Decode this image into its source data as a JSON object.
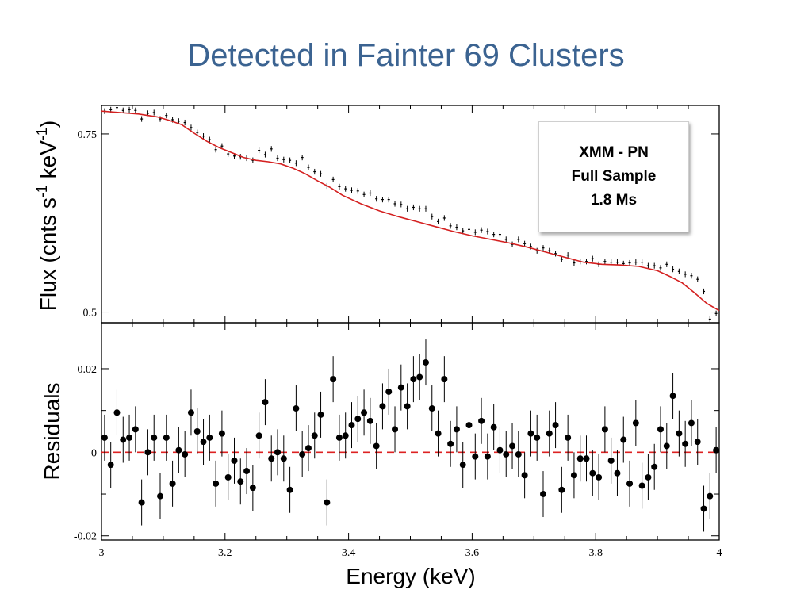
{
  "slide": {
    "title": "Detected in Fainter 69 Clusters"
  },
  "annotation_box": {
    "line1": "XMM - PN",
    "line2": "Full Sample",
    "line3": "1.8 Ms"
  },
  "chart_data": [
    {
      "type": "scatter",
      "panel": "top",
      "ylabel": "Flux (cnts s",
      "ylabel_sup1": "-1",
      "ylabel_mid": " keV",
      "ylabel_sup2": "-1",
      "ylabel_end": ")",
      "xlim": [
        3,
        4
      ],
      "ylim": [
        0.485,
        0.79
      ],
      "ytick_values": [
        0.5,
        0.75
      ],
      "ytick_labels": [
        "0.5",
        "0.75"
      ],
      "series": [
        {
          "kind": "data-points",
          "x": [
            3.005,
            3.015,
            3.025,
            3.035,
            3.045,
            3.055,
            3.065,
            3.075,
            3.085,
            3.095,
            3.105,
            3.115,
            3.125,
            3.135,
            3.145,
            3.155,
            3.165,
            3.175,
            3.185,
            3.195,
            3.205,
            3.215,
            3.225,
            3.235,
            3.245,
            3.255,
            3.265,
            3.275,
            3.285,
            3.295,
            3.305,
            3.315,
            3.325,
            3.335,
            3.345,
            3.355,
            3.365,
            3.375,
            3.385,
            3.395,
            3.405,
            3.415,
            3.425,
            3.435,
            3.445,
            3.455,
            3.465,
            3.475,
            3.485,
            3.495,
            3.505,
            3.515,
            3.525,
            3.535,
            3.545,
            3.555,
            3.565,
            3.575,
            3.585,
            3.595,
            3.605,
            3.615,
            3.625,
            3.635,
            3.645,
            3.655,
            3.665,
            3.675,
            3.685,
            3.695,
            3.705,
            3.715,
            3.725,
            3.735,
            3.745,
            3.755,
            3.765,
            3.775,
            3.785,
            3.795,
            3.805,
            3.815,
            3.825,
            3.835,
            3.845,
            3.855,
            3.865,
            3.875,
            3.885,
            3.895,
            3.905,
            3.915,
            3.925,
            3.935,
            3.945,
            3.955,
            3.965,
            3.975,
            3.985,
            3.995
          ],
          "y": [
            0.782,
            0.784,
            0.787,
            0.783,
            0.784,
            0.783,
            0.771,
            0.779,
            0.78,
            0.771,
            0.776,
            0.77,
            0.768,
            0.766,
            0.759,
            0.752,
            0.747,
            0.742,
            0.728,
            0.733,
            0.722,
            0.719,
            0.718,
            0.716,
            0.713,
            0.727,
            0.721,
            0.729,
            0.716,
            0.714,
            0.713,
            0.709,
            0.717,
            0.703,
            0.697,
            0.694,
            0.677,
            0.686,
            0.676,
            0.673,
            0.671,
            0.67,
            0.665,
            0.667,
            0.659,
            0.658,
            0.658,
            0.652,
            0.651,
            0.645,
            0.647,
            0.645,
            0.645,
            0.634,
            0.627,
            0.632,
            0.621,
            0.619,
            0.614,
            0.616,
            0.612,
            0.615,
            0.613,
            0.609,
            0.609,
            0.602,
            0.595,
            0.602,
            0.596,
            0.592,
            0.586,
            0.59,
            0.586,
            0.582,
            0.574,
            0.58,
            0.569,
            0.571,
            0.571,
            0.575,
            0.567,
            0.571,
            0.57,
            0.57,
            0.568,
            0.569,
            0.57,
            0.57,
            0.565,
            0.565,
            0.562,
            0.567,
            0.56,
            0.557,
            0.553,
            0.551,
            0.546,
            0.529,
            0.49,
            0.498
          ],
          "yerr": 0.004
        },
        {
          "kind": "model-curve",
          "x": [
            3.0,
            3.03,
            3.06,
            3.09,
            3.11,
            3.13,
            3.15,
            3.17,
            3.19,
            3.21,
            3.23,
            3.25,
            3.27,
            3.29,
            3.31,
            3.33,
            3.35,
            3.37,
            3.39,
            3.42,
            3.45,
            3.48,
            3.51,
            3.54,
            3.57,
            3.6,
            3.63,
            3.66,
            3.69,
            3.72,
            3.75,
            3.78,
            3.81,
            3.84,
            3.87,
            3.9,
            3.92,
            3.94,
            3.96,
            3.98,
            4.0
          ],
          "y": [
            0.782,
            0.78,
            0.778,
            0.774,
            0.769,
            0.763,
            0.751,
            0.74,
            0.731,
            0.724,
            0.717,
            0.713,
            0.711,
            0.708,
            0.702,
            0.694,
            0.684,
            0.675,
            0.664,
            0.652,
            0.642,
            0.634,
            0.627,
            0.62,
            0.613,
            0.607,
            0.602,
            0.597,
            0.591,
            0.584,
            0.577,
            0.57,
            0.567,
            0.566,
            0.564,
            0.558,
            0.55,
            0.541,
            0.527,
            0.512,
            0.502
          ]
        }
      ]
    },
    {
      "type": "scatter",
      "panel": "bottom",
      "xlabel": "Energy (keV)",
      "ylabel": "Residuals",
      "xlim": [
        3,
        4
      ],
      "ylim": [
        -0.021,
        0.031
      ],
      "xtick_values": [
        3,
        3.2,
        3.4,
        3.6,
        3.8,
        4
      ],
      "xtick_labels": [
        "3",
        "3.2",
        "3.4",
        "3.6",
        "3.8",
        "4"
      ],
      "ytick_values": [
        -0.02,
        0,
        0.02
      ],
      "ytick_labels": [
        "-0.02",
        "0",
        "0.02"
      ],
      "zero_line": {
        "y": 0,
        "color": "#dd2222",
        "style": "dashed"
      },
      "series": [
        {
          "kind": "residual-points",
          "x": [
            3.005,
            3.015,
            3.025,
            3.035,
            3.045,
            3.055,
            3.065,
            3.075,
            3.085,
            3.095,
            3.105,
            3.115,
            3.125,
            3.135,
            3.145,
            3.155,
            3.165,
            3.175,
            3.185,
            3.195,
            3.205,
            3.215,
            3.225,
            3.235,
            3.245,
            3.255,
            3.265,
            3.275,
            3.285,
            3.295,
            3.305,
            3.315,
            3.325,
            3.335,
            3.345,
            3.355,
            3.365,
            3.375,
            3.385,
            3.395,
            3.405,
            3.415,
            3.425,
            3.435,
            3.445,
            3.455,
            3.465,
            3.475,
            3.485,
            3.495,
            3.505,
            3.515,
            3.525,
            3.535,
            3.545,
            3.555,
            3.565,
            3.575,
            3.585,
            3.595,
            3.605,
            3.615,
            3.625,
            3.635,
            3.645,
            3.655,
            3.665,
            3.675,
            3.685,
            3.695,
            3.705,
            3.715,
            3.725,
            3.735,
            3.745,
            3.755,
            3.765,
            3.775,
            3.785,
            3.795,
            3.805,
            3.815,
            3.825,
            3.835,
            3.845,
            3.855,
            3.865,
            3.875,
            3.885,
            3.895,
            3.905,
            3.915,
            3.925,
            3.935,
            3.945,
            3.955,
            3.965,
            3.975,
            3.985,
            3.995
          ],
          "y": [
            0.0035,
            -0.003,
            0.0095,
            0.003,
            0.0035,
            0.0055,
            -0.012,
            0,
            0.0035,
            -0.0105,
            0.0035,
            -0.0075,
            0.0005,
            -0.0005,
            0.0095,
            0.005,
            0.0025,
            0.0035,
            -0.0075,
            0.0045,
            -0.006,
            -0.002,
            -0.007,
            -0.0045,
            -0.0085,
            0.004,
            0.012,
            -0.0015,
            0,
            -0.0015,
            -0.009,
            0.0105,
            -0.0005,
            0.001,
            0.004,
            0.009,
            -0.012,
            0.0175,
            0.0035,
            0.004,
            0.0065,
            0.008,
            0.0095,
            0.0075,
            0.0015,
            0.011,
            0.0145,
            0.0055,
            0.0155,
            0.011,
            0.0175,
            0.018,
            0.0215,
            0.0105,
            0.0045,
            0.0175,
            0.002,
            0.0055,
            -0.003,
            0.0065,
            -0.001,
            0.0075,
            -0.001,
            0.006,
            0.0005,
            -0.0005,
            0.0015,
            -0.0005,
            -0.0055,
            0.0045,
            0.0035,
            -0.01,
            0.0045,
            0.0065,
            -0.009,
            0.0035,
            -0.0055,
            -0.0015,
            -0.0015,
            -0.005,
            -0.006,
            0.0055,
            -0.002,
            -0.005,
            0.003,
            -0.0075,
            0.007,
            -0.008,
            -0.006,
            -0.0035,
            0.0055,
            0.0015,
            0.0135,
            0.0045,
            0.002,
            0.007,
            0.0025,
            -0.0135,
            -0.0105,
            0.0005
          ],
          "yerr": 0.0055
        }
      ]
    }
  ]
}
